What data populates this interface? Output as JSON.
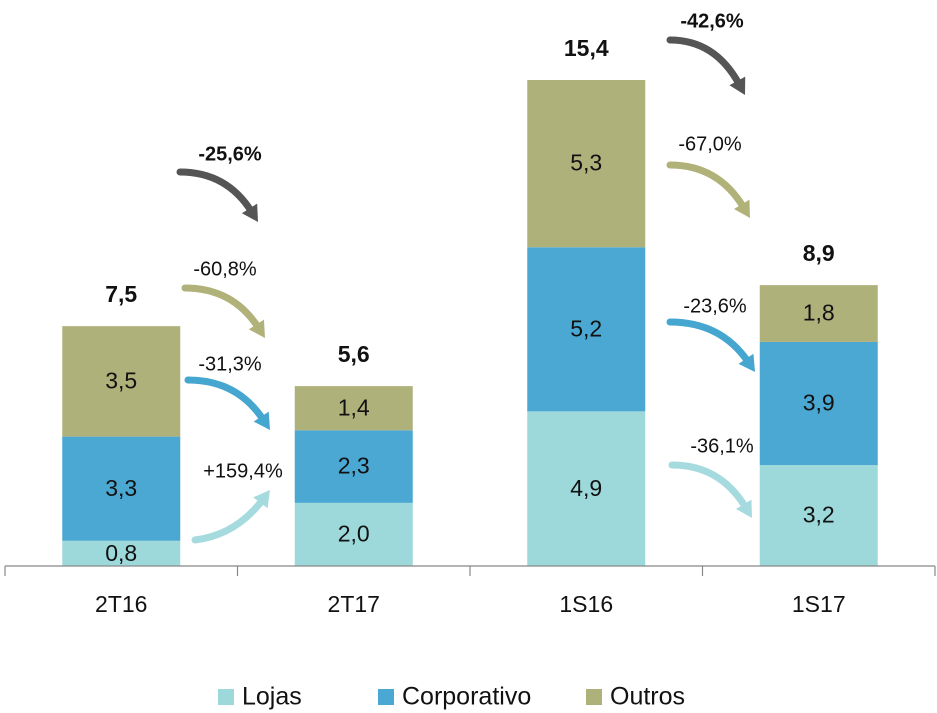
{
  "chart_data": {
    "type": "stacked_bar",
    "categories": [
      "2T16",
      "2T17",
      "1S16",
      "1S17"
    ],
    "series": [
      {
        "name": "Lojas",
        "color": "#9dd9db",
        "values": [
          0.8,
          2.0,
          4.9,
          3.2
        ],
        "value_labels": [
          "0,8",
          "2,0",
          "4,9",
          "3,2"
        ]
      },
      {
        "name": "Corporativo",
        "color": "#4aa8d3",
        "values": [
          3.3,
          2.3,
          5.2,
          3.9
        ],
        "value_labels": [
          "3,3",
          "2,3",
          "5,2",
          "3,9"
        ]
      },
      {
        "name": "Outros",
        "color": "#afb17b",
        "values": [
          3.5,
          1.4,
          5.3,
          1.8
        ],
        "value_labels": [
          "3,5",
          "1,4",
          "5,3",
          "1,8"
        ]
      }
    ],
    "totals": [
      7.5,
      5.6,
      15.4,
      8.9
    ],
    "total_labels": [
      "7,5",
      "5,6",
      "15,4",
      "8,9"
    ],
    "changes": [
      {
        "total": "-25,6%",
        "series": [
          "+159,4%",
          "-31,3%",
          "-60,8%"
        ]
      },
      {
        "total": "-42,6%",
        "series": [
          "-36,1%",
          "-23,6%",
          "-67,0%"
        ]
      }
    ]
  }
}
